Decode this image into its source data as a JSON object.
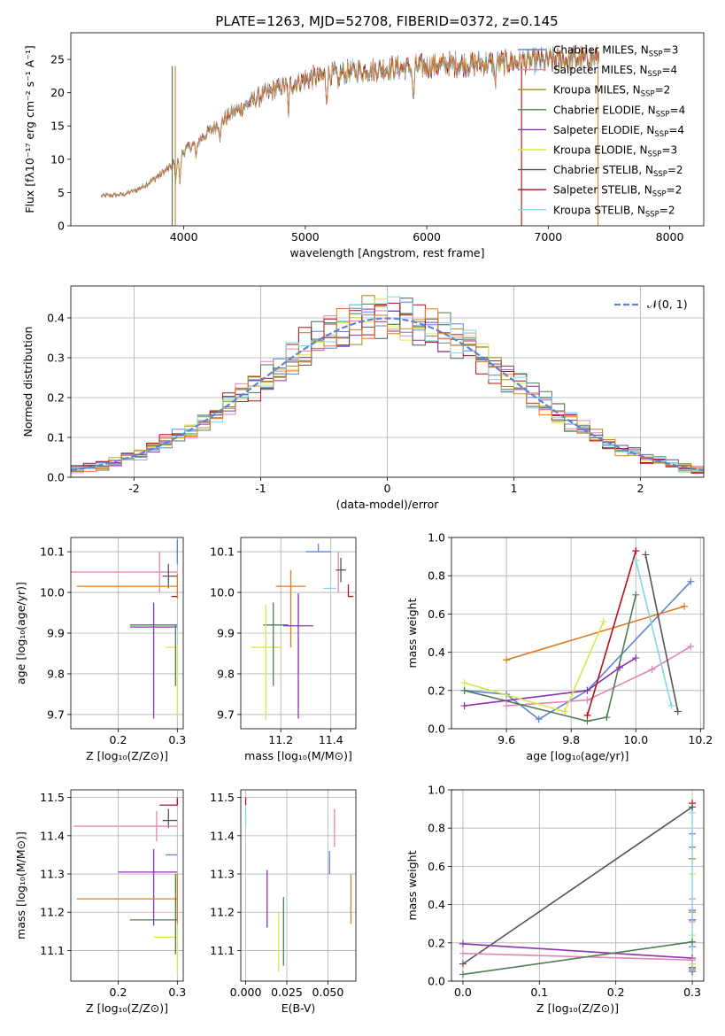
{
  "title": "PLATE=1263, MJD=52708, FIBERID=0372, z=0.145",
  "colors": {
    "chabrier_miles": "#5b84d6",
    "salpeter_miles": "#e386b7",
    "kroupa_miles": "#a8861e",
    "chabrier_elodie": "#4f7f55",
    "salpeter_elodie": "#8e32b0",
    "kroupa_elodie": "#d9e64d",
    "chabrier_stelib": "#555555",
    "salpeter_stelib": "#b40f1a",
    "kroupa_stelib": "#7fd8e3",
    "orange": "#e07b20",
    "normal": "#5b84d6"
  },
  "chart_data": [
    {
      "id": "spectrum",
      "type": "line",
      "xlabel": "wavelength [Angstrom, rest frame]",
      "ylabel": "Flux [fλ10⁻¹⁷ erg cm⁻² s⁻¹ A⁻¹]",
      "xlim": [
        3070,
        8280
      ],
      "ylim": [
        0,
        29
      ],
      "xticks": [
        4000,
        5000,
        6000,
        7000,
        8000
      ],
      "yticks": [
        0,
        5,
        10,
        15,
        20,
        25
      ],
      "legend_position": "right",
      "legend": [
        "Chabrier MILES, N_SSP=3",
        "Salpeter MILES, N_SSP=4",
        "Kroupa MILES, N_SSP=2",
        "Chabrier ELODIE, N_SSP=4",
        "Salpeter ELODIE, N_SSP=4",
        "Kroupa ELODIE, N_SSP=3",
        "Chabrier STELIB, N_SSP=2",
        "Salpeter STELIB, N_SSP=2",
        "Kroupa STELIB, N_SSP=2"
      ],
      "continuum": {
        "x": [
          3320,
          3500,
          3600,
          3700,
          3800,
          3900,
          3950,
          4000,
          4100,
          4200,
          4300,
          4400,
          4500,
          4600,
          4800,
          5000,
          5200,
          5400,
          5600,
          5800,
          6000,
          6200,
          6400,
          6600,
          6800,
          7000,
          7200,
          7400
        ],
        "y": [
          4.5,
          4.7,
          5.3,
          6.3,
          7.6,
          9.0,
          10.5,
          11.2,
          12.5,
          14.0,
          15.6,
          17.0,
          18.0,
          19.2,
          20.8,
          22.0,
          22.7,
          23.2,
          23.5,
          23.7,
          24.0,
          24.2,
          24.3,
          24.5,
          24.6,
          24.8,
          25.0,
          25.2
        ]
      }
    },
    {
      "id": "residuals",
      "type": "step",
      "xlabel": "(data-model)/error",
      "ylabel": "Normed distribution",
      "xlim": [
        -2.5,
        2.5
      ],
      "ylim": [
        0,
        0.48
      ],
      "xticks": [
        -2,
        -1,
        0,
        1,
        2
      ],
      "yticks": [
        0.0,
        0.1,
        0.2,
        0.3,
        0.4
      ],
      "legend": [
        "𝒩(0, 1)"
      ],
      "legend_position": "top-right",
      "bin_width": 0.1
    },
    {
      "id": "age_vs_z",
      "type": "errorbar",
      "xlabel": "Z [log₁₀(Z/Z⊙)]",
      "ylabel": "age  [log₁₀(age/yr)]",
      "xlim": [
        0.12,
        0.31
      ],
      "ylim": [
        9.665,
        10.135
      ],
      "xticks": [
        0.2,
        0.3
      ],
      "yticks": [
        9.7,
        9.8,
        9.9,
        10.0,
        10.1
      ],
      "points": [
        {
          "series": "chabrier_miles",
          "x": 0.3,
          "xerr": [
            0.0,
            0.0
          ],
          "y": 10.1,
          "yerr": [
            0.03,
            0.03
          ]
        },
        {
          "series": "salpeter_miles",
          "x": 0.27,
          "xerr": [
            0.15,
            0.03
          ],
          "y": 10.05,
          "yerr": [
            0.05,
            0.05
          ]
        },
        {
          "series": "chabrier_stelib",
          "x": 0.285,
          "xerr": [
            0.01,
            0.015
          ],
          "y": 10.04,
          "yerr": [
            0.03,
            0.03
          ]
        },
        {
          "series": "orange",
          "x": 0.3,
          "xerr": [
            0.17,
            0.0
          ],
          "y": 10.015,
          "yerr": [
            0.03,
            0.03
          ]
        },
        {
          "series": "salpeter_stelib",
          "x": 0.3,
          "xerr": [
            0.01,
            0.0
          ],
          "y": 9.99,
          "yerr": [
            0.0,
            0.0
          ]
        },
        {
          "series": "chabrier_elodie",
          "x": 0.29,
          "xerr": [
            0.07,
            0.01
          ],
          "y": 9.92,
          "yerr": [
            0.0,
            0.0
          ]
        },
        {
          "series": "salpeter_elodie",
          "x": 0.26,
          "xerr": [
            0.04,
            0.04
          ],
          "y": 9.915,
          "yerr": [
            0.225,
            0.06
          ]
        },
        {
          "series": "kroupa_elodie",
          "x": 0.3,
          "xerr": [
            0.02,
            0.0
          ],
          "y": 9.865,
          "yerr": [
            0.17,
            0.0
          ]
        },
        {
          "series": "chabrier_elodie",
          "x": 0.297,
          "xerr": [
            0.0,
            0.0
          ],
          "y": 9.87,
          "yerr": [
            0.1,
            0.05
          ]
        }
      ]
    },
    {
      "id": "age_vs_mass",
      "type": "errorbar",
      "xlabel": "mass [log₁₀(M/M⊙)]",
      "xlim": [
        11.04,
        11.5
      ],
      "ylim": [
        9.665,
        10.135
      ],
      "xticks": [
        11.2,
        11.4
      ],
      "yticks": [
        9.7,
        9.8,
        9.9,
        10.0,
        10.1
      ],
      "points": [
        {
          "series": "chabrier_miles",
          "x": 11.35,
          "xerr": [
            0.05,
            0.05
          ],
          "y": 10.1,
          "yerr": [
            0.0,
            0.02
          ]
        },
        {
          "series": "salpeter_miles",
          "x": 11.43,
          "xerr": [
            0.0,
            0.0
          ],
          "y": 10.05,
          "yerr": [
            0.05,
            0.05
          ]
        },
        {
          "series": "chabrier_stelib",
          "x": 11.44,
          "xerr": [
            0.02,
            0.02
          ],
          "y": 10.055,
          "yerr": [
            0.03,
            0.03
          ]
        },
        {
          "series": "orange",
          "x": 11.24,
          "xerr": [
            0.06,
            0.06
          ],
          "y": 10.015,
          "yerr": [
            0.15,
            0.04
          ]
        },
        {
          "series": "kroupa_stelib",
          "x": 11.39,
          "xerr": [
            0.02,
            0.03
          ],
          "y": 10.01,
          "yerr": [
            0.0,
            0.0
          ]
        },
        {
          "series": "salpeter_stelib",
          "x": 11.47,
          "xerr": [
            0.0,
            0.02
          ],
          "y": 9.99,
          "yerr": [
            0.0,
            0.03
          ]
        },
        {
          "series": "chabrier_elodie",
          "x": 11.18,
          "xerr": [
            0.05,
            0.05
          ],
          "y": 9.92,
          "yerr": [
            0.0,
            0.0
          ]
        },
        {
          "series": "salpeter_elodie",
          "x": 11.27,
          "xerr": [
            0.06,
            0.06
          ],
          "y": 9.918,
          "yerr": [
            0.228,
            0.08
          ]
        },
        {
          "series": "kroupa_elodie",
          "x": 11.14,
          "xerr": [
            0.06,
            0.06
          ],
          "y": 9.865,
          "yerr": [
            0.18,
            0.105
          ]
        },
        {
          "series": "chabrier_elodie",
          "x": 11.17,
          "xerr": [
            0.0,
            0.0
          ],
          "y": 9.87,
          "yerr": [
            0.1,
            0.105
          ]
        }
      ]
    },
    {
      "id": "mass_weight_vs_age",
      "type": "line",
      "xlabel": "age  [log₁₀(age/yr)]",
      "ylabel": "mass weight",
      "xlim": [
        9.43,
        10.21
      ],
      "ylim": [
        0.0,
        1.0
      ],
      "xticks": [
        9.6,
        9.8,
        10.0,
        10.2
      ],
      "yticks": [
        0.0,
        0.2,
        0.4,
        0.6,
        0.8,
        1.0
      ],
      "series": [
        {
          "key": "chabrier_miles",
          "x": [
            9.47,
            9.6,
            9.7,
            9.85,
            10.17
          ],
          "y": [
            0.2,
            0.18,
            0.05,
            0.2,
            0.77
          ]
        },
        {
          "key": "salpeter_miles",
          "x": [
            9.6,
            9.85,
            10.05,
            10.17
          ],
          "y": [
            0.12,
            0.15,
            0.31,
            0.43
          ]
        },
        {
          "key": "orange",
          "x": [
            9.6,
            10.15
          ],
          "y": [
            0.36,
            0.64
          ]
        },
        {
          "key": "chabrier_elodie",
          "x": [
            9.47,
            9.85,
            9.91,
            10.0
          ],
          "y": [
            0.2,
            0.04,
            0.06,
            0.7
          ]
        },
        {
          "key": "salpeter_elodie",
          "x": [
            9.47,
            9.85,
            9.95,
            10.0
          ],
          "y": [
            0.12,
            0.2,
            0.32,
            0.37
          ]
        },
        {
          "key": "kroupa_elodie",
          "x": [
            9.47,
            9.78,
            9.9
          ],
          "y": [
            0.24,
            0.09,
            0.56
          ]
        },
        {
          "key": "salpeter_stelib",
          "x": [
            9.85,
            10.0
          ],
          "y": [
            0.07,
            0.93
          ]
        },
        {
          "key": "chabrier_stelib",
          "x": [
            10.03,
            10.13
          ],
          "y": [
            0.91,
            0.09
          ]
        },
        {
          "key": "kroupa_stelib",
          "x": [
            10.0,
            10.11
          ],
          "y": [
            0.88,
            0.12
          ]
        }
      ]
    },
    {
      "id": "mass_vs_z",
      "type": "errorbar",
      "xlabel": "Z [log₁₀(Z/Z⊙)]",
      "ylabel": "mass [log₁₀(M/M⊙)]",
      "xlim": [
        0.12,
        0.31
      ],
      "ylim": [
        11.02,
        11.52
      ],
      "xticks": [
        0.2,
        0.3
      ],
      "yticks": [
        11.1,
        11.2,
        11.3,
        11.4,
        11.5
      ],
      "points": [
        {
          "series": "salpeter_stelib",
          "x": 0.3,
          "xerr": [
            0.03,
            0.0
          ],
          "y": 11.48,
          "yerr": [
            0.0,
            0.02
          ]
        },
        {
          "series": "chabrier_stelib",
          "x": 0.285,
          "xerr": [
            0.01,
            0.015
          ],
          "y": 11.44,
          "yerr": [
            0.02,
            0.03
          ]
        },
        {
          "series": "salpeter_miles",
          "x": 0.265,
          "xerr": [
            0.14,
            0.035
          ],
          "y": 11.425,
          "yerr": [
            0.04,
            0.04
          ]
        },
        {
          "series": "chabrier_miles",
          "x": 0.3,
          "xerr": [
            0.02,
            0.0
          ],
          "y": 11.35,
          "yerr": [
            0.0,
            0.0
          ]
        },
        {
          "series": "salpeter_elodie",
          "x": 0.26,
          "xerr": [
            0.06,
            0.04
          ],
          "y": 11.305,
          "yerr": [
            0.14,
            0.06
          ]
        },
        {
          "series": "orange",
          "x": 0.3,
          "xerr": [
            0.17,
            0.0
          ],
          "y": 11.235,
          "yerr": [
            0.065,
            0.065
          ]
        },
        {
          "series": "chabrier_elodie",
          "x": 0.29,
          "xerr": [
            0.07,
            0.01
          ],
          "y": 11.18,
          "yerr": [
            0.0,
            0.0
          ]
        },
        {
          "series": "kroupa_elodie",
          "x": 0.3,
          "xerr": [
            0.04,
            0.0
          ],
          "y": 11.135,
          "yerr": [
            0.0,
            0.0
          ]
        },
        {
          "series": "chabrier_elodie",
          "x": 0.297,
          "xerr": [
            0.0,
            0.0
          ],
          "y": 11.18,
          "yerr": [
            0.09,
            0.12
          ]
        },
        {
          "series": "kroupa_elodie",
          "x": 0.3,
          "xerr": [
            0.0,
            0.0
          ],
          "y": 11.1,
          "yerr": [
            0.06,
            0.06
          ]
        }
      ]
    },
    {
      "id": "mass_vs_ebv",
      "type": "errorbar",
      "xlabel": "E(B-V)",
      "xlim": [
        -0.003,
        0.067
      ],
      "ylim": [
        11.02,
        11.52
      ],
      "xticks": [
        0.0,
        0.025,
        0.05
      ],
      "yticks": [
        11.1,
        11.2,
        11.3,
        11.4,
        11.5
      ],
      "points": [
        {
          "series": "salpeter_stelib",
          "x": 0.0,
          "xerr": [
            0.0,
            0.0
          ],
          "y": 11.48,
          "yerr": [
            0.0,
            0.02
          ]
        },
        {
          "series": "kroupa_stelib",
          "x": 0.0,
          "xerr": [
            0.0,
            0.0
          ],
          "y": 11.43,
          "yerr": [
            0.0,
            0.04
          ]
        },
        {
          "series": "salpeter_miles",
          "x": 0.054,
          "xerr": [
            0.0,
            0.0
          ],
          "y": 11.42,
          "yerr": [
            0.05,
            0.05
          ]
        },
        {
          "series": "chabrier_miles",
          "x": 0.051,
          "xerr": [
            0.0,
            0.0
          ],
          "y": 11.33,
          "yerr": [
            0.03,
            0.03
          ]
        },
        {
          "series": "salpeter_elodie",
          "x": 0.013,
          "xerr": [
            0.0,
            0.0
          ],
          "y": 11.26,
          "yerr": [
            0.1,
            0.05
          ]
        },
        {
          "series": "orange",
          "x": 0.064,
          "xerr": [
            0.0,
            0.0
          ],
          "y": 11.235,
          "yerr": [
            0.065,
            0.065
          ]
        },
        {
          "series": "chabrier_elodie",
          "x": 0.023,
          "xerr": [
            0.0,
            0.0
          ],
          "y": 11.15,
          "yerr": [
            0.09,
            0.09
          ]
        },
        {
          "series": "kroupa_elodie",
          "x": 0.02,
          "xerr": [
            0.0,
            0.0
          ],
          "y": 11.125,
          "yerr": [
            0.08,
            0.075
          ]
        }
      ]
    },
    {
      "id": "mass_weight_vs_z",
      "type": "line",
      "xlabel": "Z [log₁₀(Z/Z⊙)]",
      "ylabel": "mass weight",
      "xlim": [
        -0.015,
        0.315
      ],
      "ylim": [
        0.0,
        1.0
      ],
      "xticks": [
        0.0,
        0.1,
        0.2,
        0.3
      ],
      "yticks": [
        0.0,
        0.2,
        0.4,
        0.6,
        0.8,
        1.0
      ],
      "series": [
        {
          "key": "chabrier_stelib",
          "x": [
            0.0,
            0.3
          ],
          "y": [
            0.09,
            0.91
          ]
        },
        {
          "key": "salpeter_elodie",
          "x": [
            0.0,
            0.3
          ],
          "y": [
            0.195,
            0.12
          ]
        },
        {
          "key": "salpeter_miles",
          "x": [
            0.0,
            0.3
          ],
          "y": [
            0.145,
            0.11
          ]
        },
        {
          "key": "chabrier_elodie",
          "x": [
            0.0,
            0.3
          ],
          "y": [
            0.035,
            0.205
          ]
        }
      ],
      "markers_at_z03": [
        {
          "key": "salpeter_stelib",
          "y": [
            0.93,
            0.07,
            0.05
          ]
        },
        {
          "key": "kroupa_stelib",
          "y": [
            0.88,
            0.12
          ]
        },
        {
          "key": "chabrier_miles",
          "y": [
            0.77,
            0.05,
            0.18
          ]
        },
        {
          "key": "chabrier_elodie",
          "y": [
            0.7,
            0.06
          ]
        },
        {
          "key": "orange",
          "y": [
            0.64,
            0.36
          ]
        },
        {
          "key": "kroupa_elodie",
          "y": [
            0.56,
            0.24,
            0.09
          ]
        },
        {
          "key": "salpeter_miles",
          "y": [
            0.43,
            0.31
          ]
        },
        {
          "key": "salpeter_elodie",
          "y": [
            0.37,
            0.32
          ]
        }
      ]
    }
  ]
}
